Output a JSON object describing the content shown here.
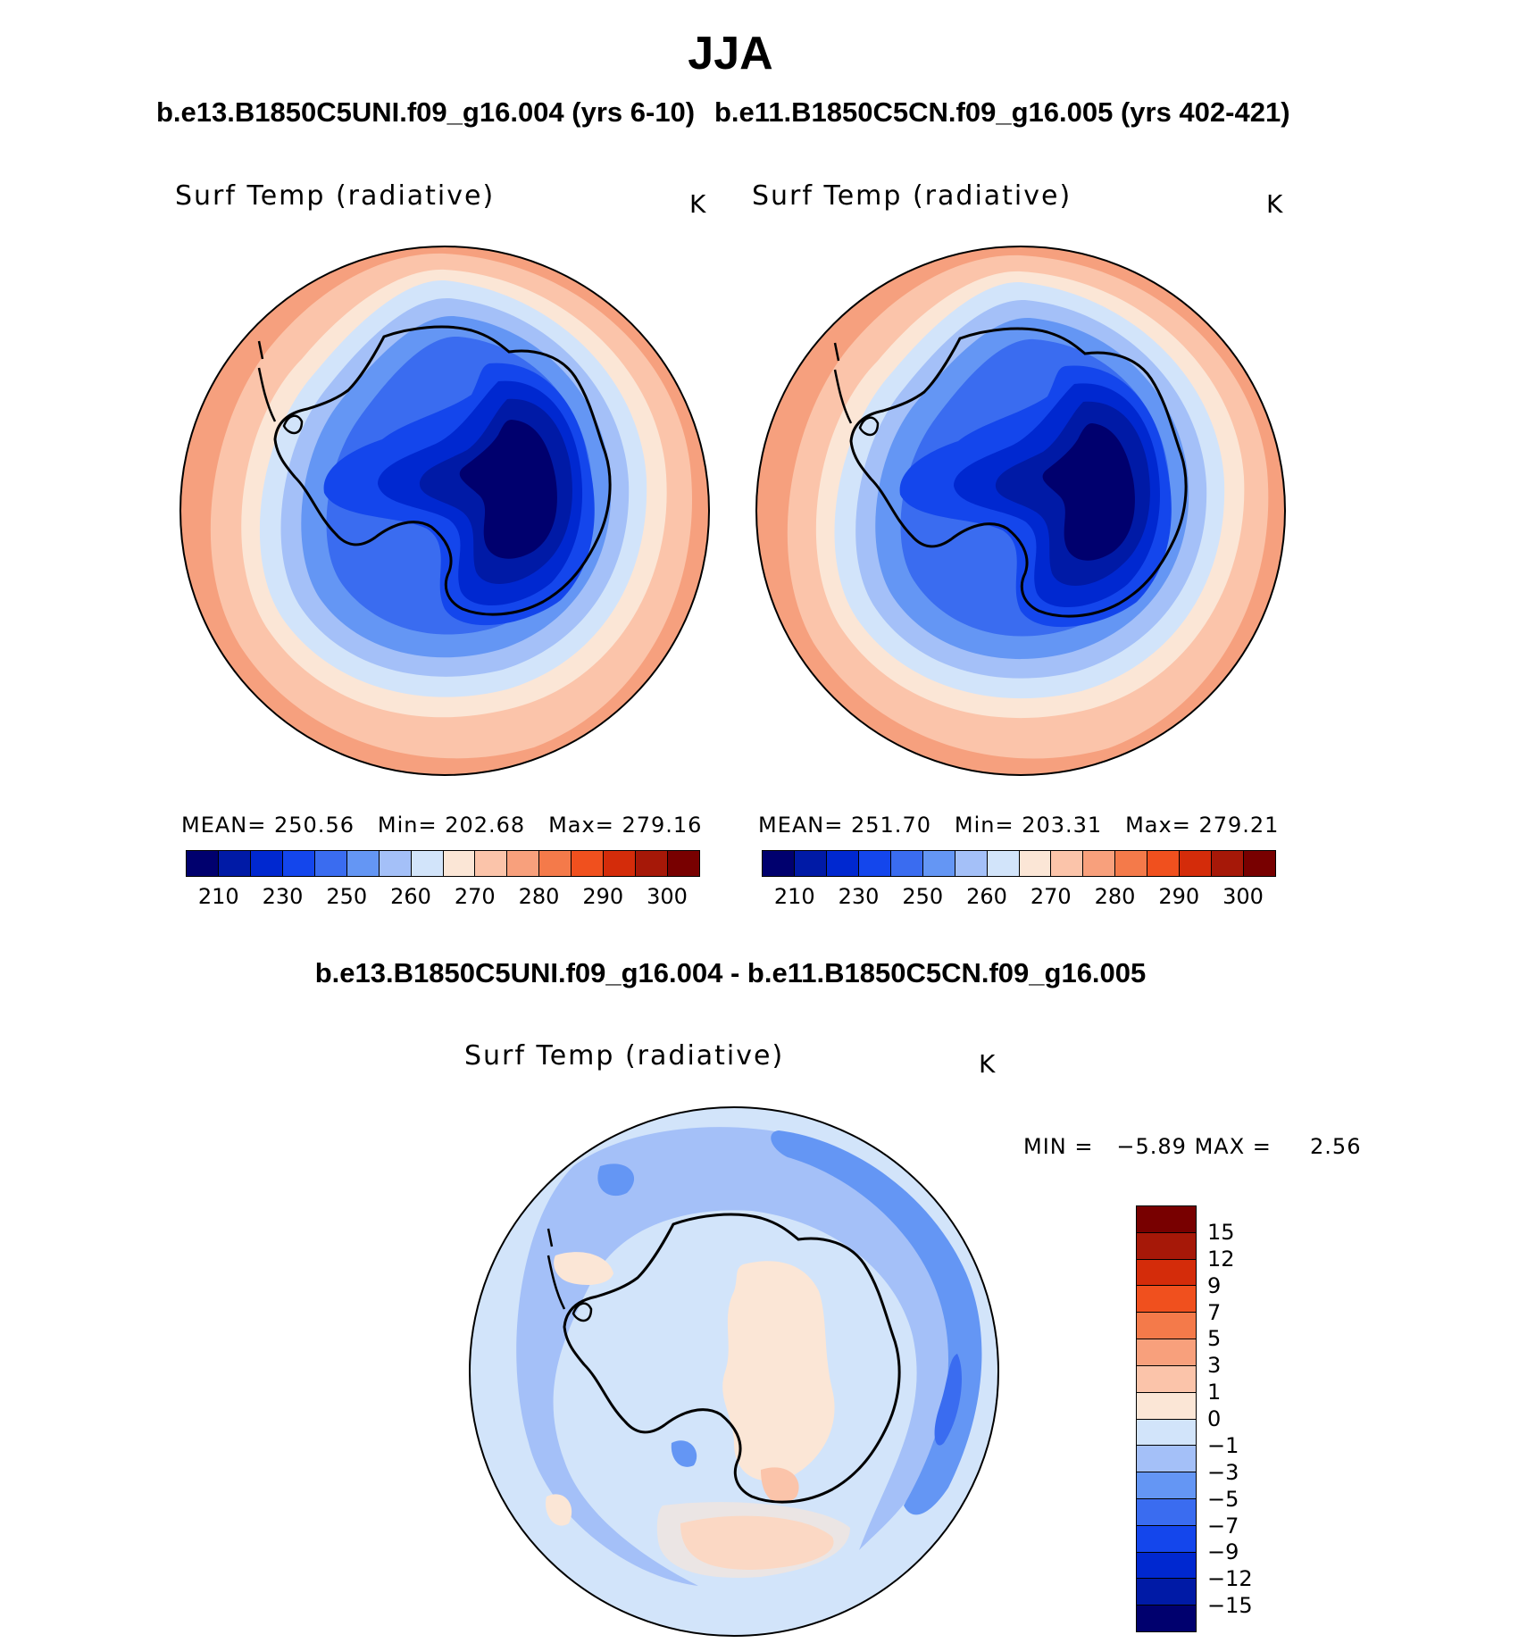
{
  "title": "JJA",
  "left_panel": {
    "case_title": "b.e13.B1850C5UNI.f09_g16.004 (yrs 6-10)",
    "variable": "Surf Temp (radiative)",
    "units": "K",
    "stats": {
      "mean_label": "MEAN=",
      "mean": "250.56",
      "min_label": "Min=",
      "min": "202.68",
      "max_label": "Max=",
      "max": "279.16"
    }
  },
  "right_panel": {
    "case_title": "b.e11.B1850C5CN.f09_g16.005 (yrs 402-421)",
    "variable": "Surf Temp (radiative)",
    "units": "K",
    "stats": {
      "mean_label": "MEAN=",
      "mean": "251.70",
      "min_label": "Min=",
      "min": "203.31",
      "max_label": "Max=",
      "max": "279.21"
    }
  },
  "diff_panel": {
    "title": "b.e13.B1850C5UNI.f09_g16.004 - b.e11.B1850C5CN.f09_g16.005",
    "variable": "Surf Temp (radiative)",
    "units": "K",
    "min_label": "MIN =",
    "min": "−5.89",
    "max_label": "MAX =",
    "max": "2.56"
  },
  "abs_colorbar": {
    "colors": [
      "#00006e",
      "#001aa6",
      "#0028d0",
      "#1446ec",
      "#3a6cf0",
      "#6496f4",
      "#a4c0f8",
      "#d2e4fa",
      "#fbe6d6",
      "#fbc4aa",
      "#f8a07c",
      "#f47a4a",
      "#f0501e",
      "#d42c0a",
      "#a61808",
      "#780000"
    ],
    "ticks": [
      "210",
      "230",
      "250",
      "260",
      "270",
      "280",
      "290",
      "300"
    ]
  },
  "diff_colorbar": {
    "colors": [
      "#780000",
      "#a61808",
      "#d42c0a",
      "#f0501e",
      "#f47a4a",
      "#f8a07c",
      "#fbc4aa",
      "#fbe6d6",
      "#d2e4fa",
      "#a4c0f8",
      "#6496f4",
      "#3a6cf0",
      "#1446ec",
      "#0028d0",
      "#001aa6",
      "#00006e"
    ],
    "ticks": [
      "15",
      "12",
      "9",
      "7",
      "5",
      "3",
      "1",
      "0",
      "−1",
      "−3",
      "−5",
      "−7",
      "−9",
      "−12",
      "−15"
    ]
  },
  "map_colors": {
    "ocean_warm": "#f6a07e",
    "ocean_mid": "#fbc4aa",
    "ocean_light": "#fbe6d6",
    "ice_1": "#d2e4fa",
    "ice_2": "#a4c0f8",
    "ice_3": "#6496f4",
    "ice_4": "#3a6cf0",
    "land_1": "#1446ec",
    "land_2": "#0028d0",
    "land_3": "#001aa6",
    "land_4": "#00006e",
    "diff_bg": "#d2e4fa",
    "diff_blue": "#a4c0f8",
    "diff_blue2": "#6496f4",
    "diff_warm": "#fbe6d6",
    "diff_warm2": "#fbc4aa"
  }
}
